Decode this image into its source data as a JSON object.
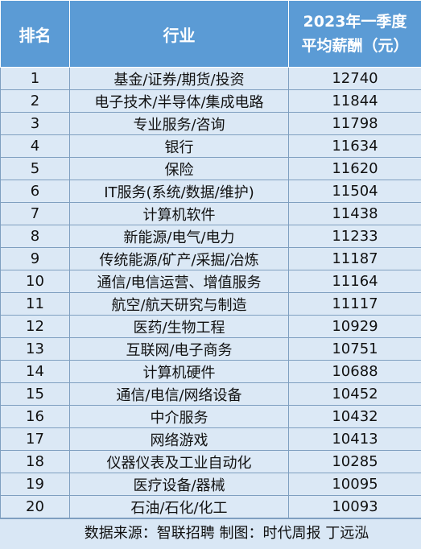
{
  "chart_data": {
    "type": "table",
    "columns": [
      "排名",
      "行业",
      "2023年一季度",
      "平均薪酬（元）"
    ],
    "rows": [
      {
        "rank": "1",
        "industry": "基金/证券/期货/投资",
        "salary": "12740"
      },
      {
        "rank": "2",
        "industry": "电子技术/半导体/集成电路",
        "salary": "11844"
      },
      {
        "rank": "3",
        "industry": "专业服务/咨询",
        "salary": "11798"
      },
      {
        "rank": "4",
        "industry": "银行",
        "salary": "11634"
      },
      {
        "rank": "5",
        "industry": "保险",
        "salary": "11620"
      },
      {
        "rank": "6",
        "industry": "IT服务(系统/数据/维护)",
        "salary": "11504"
      },
      {
        "rank": "7",
        "industry": "计算机软件",
        "salary": "11438"
      },
      {
        "rank": "8",
        "industry": "新能源/电气/电力",
        "salary": "11233"
      },
      {
        "rank": "9",
        "industry": "传统能源/矿产/采掘/冶炼",
        "salary": "11187"
      },
      {
        "rank": "10",
        "industry": "通信/电信运营、增值服务",
        "salary": "11164"
      },
      {
        "rank": "11",
        "industry": "航空/航天研究与制造",
        "salary": "11117"
      },
      {
        "rank": "12",
        "industry": "医药/生物工程",
        "salary": "10929"
      },
      {
        "rank": "13",
        "industry": "互联网/电子商务",
        "salary": "10751"
      },
      {
        "rank": "14",
        "industry": "计算机硬件",
        "salary": "10688"
      },
      {
        "rank": "15",
        "industry": "通信/电信/网络设备",
        "salary": "10452"
      },
      {
        "rank": "16",
        "industry": "中介服务",
        "salary": "10432"
      },
      {
        "rank": "17",
        "industry": "网络游戏",
        "salary": "10413"
      },
      {
        "rank": "18",
        "industry": "仪器仪表及工业自动化",
        "salary": "10285"
      },
      {
        "rank": "19",
        "industry": "医疗设备/器械",
        "salary": "10095"
      },
      {
        "rank": "20",
        "industry": "石油/石化/化工",
        "salary": "10093"
      }
    ],
    "footer": "数据来源：智联招聘 制图：时代周报 丁远泓"
  },
  "colors": {
    "header_bg": "#5b9bd5",
    "header_text": "#ffffff",
    "body_bg": "#dbe8f5",
    "grid": "#7f9fc0"
  }
}
